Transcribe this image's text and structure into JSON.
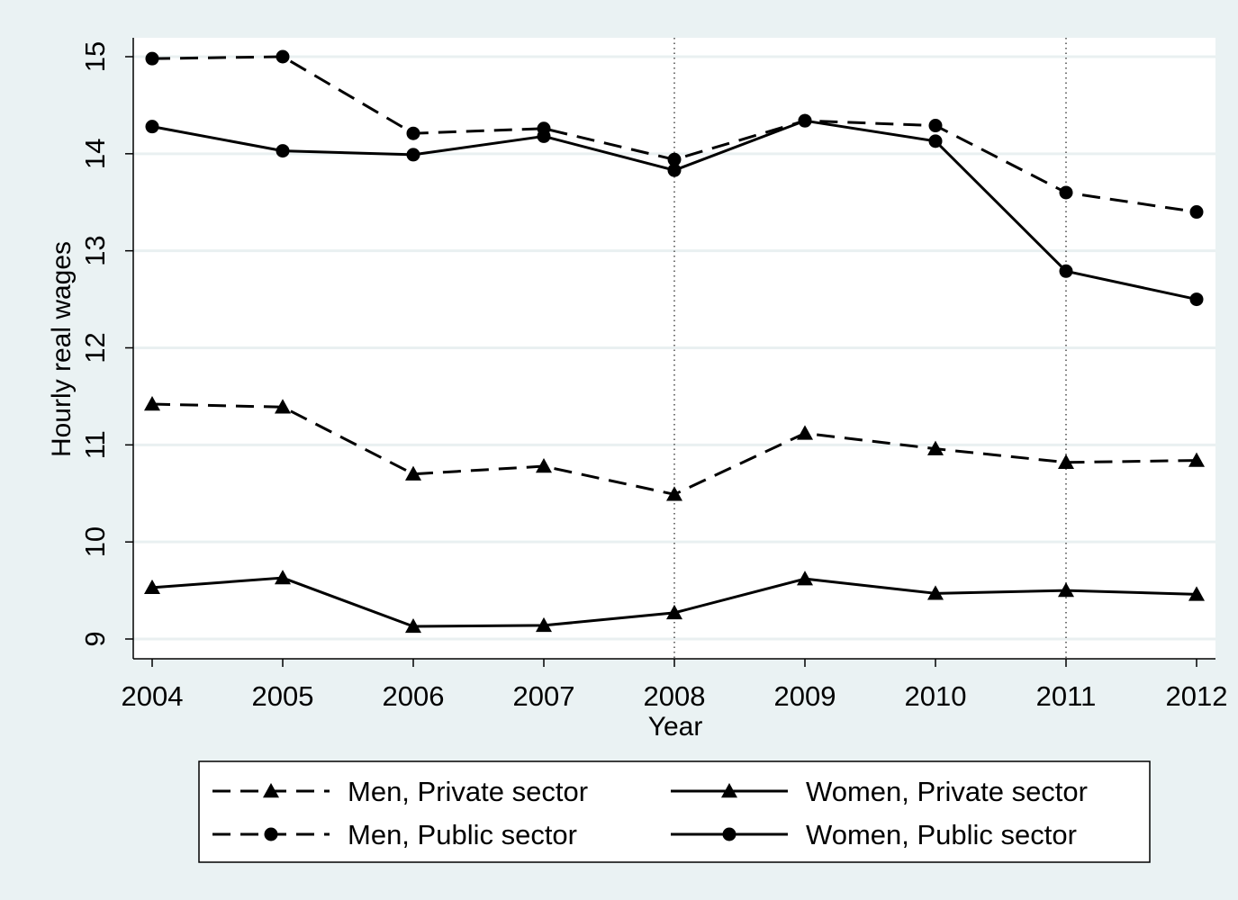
{
  "chart_data": {
    "type": "line",
    "title": "",
    "xlabel": "Year",
    "ylabel": "Hourly real wages",
    "x": [
      2004,
      2005,
      2006,
      2007,
      2008,
      2009,
      2010,
      2011,
      2012
    ],
    "xticks": [
      "2004",
      "2005",
      "2006",
      "2007",
      "2008",
      "2009",
      "2010",
      "2011",
      "2012"
    ],
    "yticks": [
      "9",
      "10",
      "11",
      "12",
      "13",
      "14",
      "15"
    ],
    "xlim": [
      2004,
      2012
    ],
    "ylim": [
      8.8,
      15.2
    ],
    "grid": "horizontal",
    "reference_lines_x": [
      2008,
      2011
    ],
    "legend_position": "bottom",
    "series": [
      {
        "name": "Men, Private sector",
        "line": "dashed",
        "marker": "triangle",
        "values": [
          11.42,
          11.39,
          10.7,
          10.78,
          10.49,
          11.12,
          10.96,
          10.82,
          10.84
        ]
      },
      {
        "name": "Women, Private sector",
        "line": "solid",
        "marker": "triangle",
        "values": [
          9.53,
          9.63,
          9.13,
          9.14,
          9.27,
          9.62,
          9.47,
          9.5,
          9.46
        ]
      },
      {
        "name": "Men, Public sector",
        "line": "dashed",
        "marker": "circle",
        "values": [
          14.98,
          15.0,
          14.21,
          14.26,
          13.94,
          14.34,
          14.29,
          13.6,
          13.4
        ]
      },
      {
        "name": "Women, Public sector",
        "line": "solid",
        "marker": "circle",
        "values": [
          14.28,
          14.03,
          13.99,
          14.18,
          13.83,
          14.34,
          14.13,
          12.79,
          12.5
        ]
      }
    ],
    "colors": {
      "background": "#eaf2f3",
      "plot_background": "#ffffff",
      "grid": "#e9f0f1",
      "line": "#000000"
    }
  }
}
